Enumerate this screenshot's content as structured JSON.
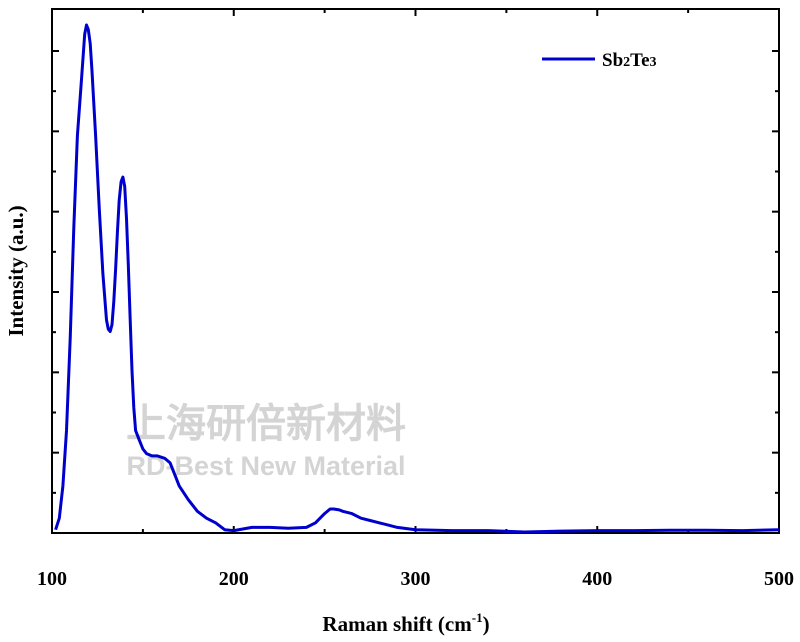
{
  "chart_data": {
    "type": "line",
    "xlabel": "Raman shift (cm",
    "xlabel_sup": "-1",
    "xlabel_close": ")",
    "ylabel": "Intensity (a.u.)",
    "xlim": [
      100,
      500
    ],
    "ylim": [
      0,
      1.1
    ],
    "x_ticks": [
      "100",
      "200",
      "300",
      "400",
      "500"
    ],
    "grid": false,
    "legend_position": "top-right",
    "series": [
      {
        "name": "Sb2Te3",
        "name_parts": [
          "Sb",
          "2",
          "Te",
          "3"
        ],
        "color": "#0000cc",
        "x": [
          102,
          104,
          106,
          108,
          110,
          112,
          114,
          116,
          118,
          119,
          120,
          121,
          122,
          124,
          126,
          128,
          130,
          131,
          132,
          133,
          134,
          135,
          136,
          137,
          138,
          139,
          140,
          141,
          142,
          143,
          144,
          145,
          146,
          148,
          150,
          152,
          155,
          158,
          162,
          165,
          168,
          170,
          175,
          180,
          185,
          190,
          195,
          200,
          210,
          220,
          230,
          240,
          245,
          250,
          253,
          255,
          258,
          260,
          265,
          270,
          275,
          280,
          285,
          290,
          300,
          320,
          340,
          360,
          380,
          400,
          420,
          440,
          460,
          480,
          500
        ],
        "y": [
          0.005,
          0.03,
          0.1,
          0.22,
          0.42,
          0.66,
          0.86,
          0.97,
          1.08,
          1.1,
          1.09,
          1.06,
          1.0,
          0.86,
          0.7,
          0.56,
          0.46,
          0.44,
          0.435,
          0.45,
          0.5,
          0.57,
          0.65,
          0.72,
          0.76,
          0.77,
          0.75,
          0.68,
          0.58,
          0.46,
          0.35,
          0.27,
          0.22,
          0.2,
          0.18,
          0.17,
          0.165,
          0.165,
          0.16,
          0.15,
          0.12,
          0.1,
          0.07,
          0.045,
          0.03,
          0.02,
          0.005,
          0.003,
          0.01,
          0.01,
          0.008,
          0.01,
          0.02,
          0.04,
          0.05,
          0.05,
          0.048,
          0.045,
          0.04,
          0.03,
          0.025,
          0.02,
          0.015,
          0.01,
          0.005,
          0.003,
          0.003,
          0.0,
          0.002,
          0.003,
          0.003,
          0.004,
          0.004,
          0.003,
          0.005
        ]
      }
    ]
  },
  "watermark": {
    "line1": "上海研倍新材料",
    "line2": "RD-Best New Material"
  }
}
